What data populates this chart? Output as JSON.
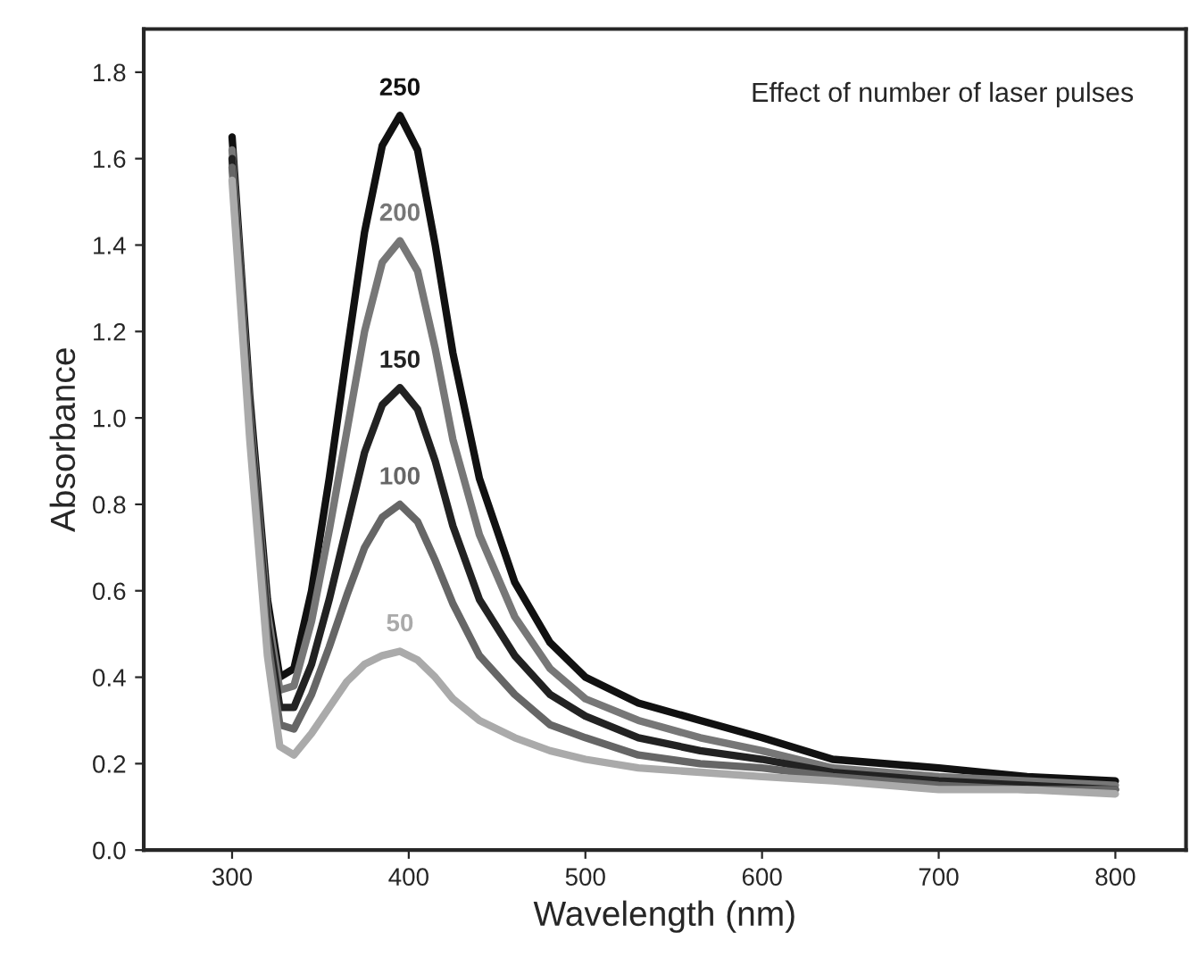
{
  "chart_data": {
    "type": "line",
    "xlabel": "Wavelength (nm)",
    "ylabel": "Absorbance",
    "annotations": [
      "Effect of number of laser pulses"
    ],
    "x": [
      300,
      310,
      320,
      327,
      335,
      345,
      355,
      365,
      375,
      385,
      395,
      405,
      415,
      425,
      440,
      460,
      480,
      500,
      530,
      565,
      600,
      640,
      700,
      750,
      800
    ],
    "series": [
      {
        "name": "250",
        "color": "#111111",
        "values": [
          1.65,
          1.05,
          0.58,
          0.4,
          0.42,
          0.6,
          0.86,
          1.15,
          1.43,
          1.63,
          1.7,
          1.62,
          1.4,
          1.15,
          0.86,
          0.62,
          0.48,
          0.4,
          0.34,
          0.3,
          0.26,
          0.21,
          0.19,
          0.17,
          0.16
        ]
      },
      {
        "name": "200",
        "color": "#777777",
        "values": [
          1.62,
          1.02,
          0.55,
          0.37,
          0.38,
          0.53,
          0.74,
          0.97,
          1.2,
          1.36,
          1.41,
          1.34,
          1.16,
          0.95,
          0.73,
          0.54,
          0.42,
          0.35,
          0.3,
          0.26,
          0.23,
          0.19,
          0.17,
          0.16,
          0.15
        ]
      },
      {
        "name": "150",
        "color": "#222222",
        "values": [
          1.6,
          1.0,
          0.52,
          0.33,
          0.33,
          0.43,
          0.58,
          0.75,
          0.92,
          1.03,
          1.07,
          1.02,
          0.9,
          0.75,
          0.58,
          0.45,
          0.36,
          0.31,
          0.26,
          0.23,
          0.21,
          0.18,
          0.16,
          0.15,
          0.14
        ]
      },
      {
        "name": "100",
        "color": "#666666",
        "values": [
          1.58,
          0.98,
          0.49,
          0.29,
          0.28,
          0.36,
          0.47,
          0.59,
          0.7,
          0.77,
          0.8,
          0.76,
          0.67,
          0.57,
          0.45,
          0.36,
          0.29,
          0.26,
          0.22,
          0.2,
          0.19,
          0.17,
          0.15,
          0.14,
          0.14
        ]
      },
      {
        "name": "50",
        "color": "#aaaaaa",
        "values": [
          1.55,
          0.95,
          0.45,
          0.24,
          0.22,
          0.27,
          0.33,
          0.39,
          0.43,
          0.45,
          0.46,
          0.44,
          0.4,
          0.35,
          0.3,
          0.26,
          0.23,
          0.21,
          0.19,
          0.18,
          0.17,
          0.16,
          0.14,
          0.14,
          0.13
        ]
      }
    ],
    "xlim": [
      250,
      840
    ],
    "ylim": [
      0,
      1.9
    ],
    "xticks": [
      300,
      400,
      500,
      600,
      700,
      800
    ],
    "yticks": [
      {
        "value": 0,
        "label": "0.0"
      },
      {
        "value": 0.2,
        "label": "0.2"
      },
      {
        "value": 0.4,
        "label": "0.4"
      },
      {
        "value": 0.6,
        "label": "0.6"
      },
      {
        "value": 0.8,
        "label": "0.8"
      },
      {
        "value": 1.0,
        "label": "1.0"
      },
      {
        "value": 1.2,
        "label": "1.2"
      },
      {
        "value": 1.4,
        "label": "1.4"
      },
      {
        "value": 1.6,
        "label": "1.6"
      },
      {
        "value": 1.8,
        "label": "1.8"
      }
    ],
    "grid": false,
    "legend": false,
    "line_style": "solid",
    "marker": "none"
  }
}
